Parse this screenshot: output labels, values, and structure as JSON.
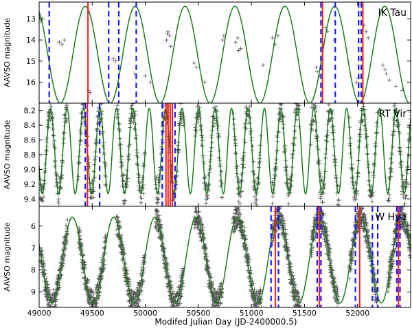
{
  "chart_data": [
    {
      "type": "line",
      "star": "IK Tau",
      "ylabel": "AAVSO magnitude",
      "xlim": [
        49000,
        52500
      ],
      "ylim": [
        12.2,
        17.0
      ],
      "y_inverted": true,
      "yticks": [
        13,
        14,
        15,
        16
      ],
      "model": {
        "period": 470,
        "phase": 49200,
        "mean": 14.7,
        "amp": 2.3,
        "color": "#1a7a1a"
      },
      "red_lines": [
        49460,
        51670,
        52050
      ],
      "blue_dashed": [
        49095,
        49655,
        49750,
        49915,
        51655,
        51790,
        52010,
        52035
      ],
      "observations": [
        [
          49005,
          12.9
        ],
        [
          49015,
          13.1
        ],
        [
          49030,
          13.0
        ],
        [
          49190,
          14.1
        ],
        [
          49215,
          14.2
        ],
        [
          49235,
          14.0
        ],
        [
          49465,
          16.4
        ],
        [
          49480,
          16.5
        ],
        [
          49700,
          14.9
        ],
        [
          49720,
          15.0
        ],
        [
          49900,
          15.6
        ],
        [
          50000,
          15.7
        ],
        [
          50050,
          16.0
        ],
        [
          50200,
          14.0
        ],
        [
          50210,
          13.7
        ],
        [
          50215,
          13.6
        ],
        [
          50230,
          13.8
        ],
        [
          50240,
          14.3
        ],
        [
          50460,
          15.1
        ],
        [
          50480,
          15.3
        ],
        [
          50560,
          16.0
        ],
        [
          50730,
          14.0
        ],
        [
          50740,
          13.8
        ],
        [
          50850,
          14.1
        ],
        [
          50870,
          13.9
        ],
        [
          50880,
          14.5
        ],
        [
          50900,
          14.4
        ],
        [
          51110,
          15.2
        ],
        [
          51200,
          13.9
        ],
        [
          51220,
          14.2
        ],
        [
          51250,
          13.8
        ],
        [
          51610,
          15.3
        ],
        [
          51620,
          15.5
        ],
        [
          51640,
          15.7
        ],
        [
          51700,
          13.4
        ],
        [
          51720,
          13.6
        ],
        [
          51780,
          14.0
        ],
        [
          51990,
          16.0
        ],
        [
          52005,
          15.8
        ],
        [
          52060,
          13.3
        ],
        [
          52080,
          13.6
        ],
        [
          52100,
          13.9
        ],
        [
          52240,
          15.2
        ],
        [
          52260,
          15.4
        ],
        [
          52270,
          15.6
        ],
        [
          52300,
          15.9
        ],
        [
          52360,
          16.2
        ],
        [
          52420,
          16.4
        ]
      ],
      "label_color": "#000000"
    },
    {
      "type": "line",
      "star": "RT Vir",
      "ylabel": "AAVSO magnitude",
      "xlim": [
        49000,
        52500
      ],
      "ylim": [
        8.1,
        9.5
      ],
      "y_inverted": true,
      "yticks": [
        8.2,
        8.4,
        8.6,
        8.8,
        9.0,
        9.2,
        9.4
      ],
      "model": {
        "period": 155,
        "phase": 49030,
        "mean": 8.75,
        "amp": 0.58,
        "color": "#1a7a1a"
      },
      "red_lines": [
        49455,
        50195,
        50215,
        50235,
        50255
      ],
      "blue_dashed": [
        49435,
        49570,
        50160,
        50280
      ],
      "observations_generated": true,
      "label_color": "#000000"
    },
    {
      "type": "line",
      "star": "W Hya",
      "ylabel": "AAVSO magnitude",
      "xlim": [
        49000,
        52500
      ],
      "ylim": [
        5.1,
        9.7
      ],
      "y_inverted": true,
      "yticks": [
        6,
        7,
        8,
        9
      ],
      "model": {
        "period": 388,
        "phase": 49120,
        "mean": 7.55,
        "amp": 1.95,
        "color": "#1a7a1a"
      },
      "red_lines": [
        51225,
        51640,
        52020,
        52385
      ],
      "blue_dashed": [
        51185,
        51255,
        51620,
        51655,
        51980,
        52140,
        52190,
        52370,
        52400
      ],
      "observations_generated": true,
      "label_color": "#000000"
    }
  ],
  "xaxis": {
    "label": "Modifed Julian Day (JD-2400000.5)",
    "ticks": [
      49000,
      49500,
      50000,
      50500,
      51000,
      51500,
      52000
    ]
  }
}
